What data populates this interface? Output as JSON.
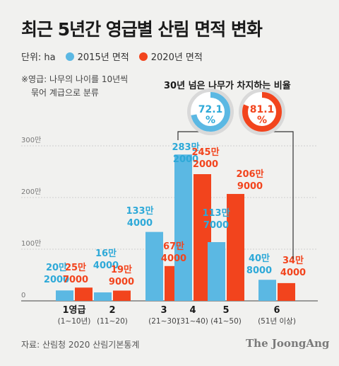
{
  "title": "최근 5년간 영급별 산림 면적 변화",
  "unit_label": "단위: ha",
  "note_lines": [
    "※영급: 나무의 나이를 10년씩",
    "묶어 계급으로 분류"
  ],
  "ratio_title": "30년 넘은 나무가 차지하는 비율",
  "source": "자료: 산림청 2020 산림기본통계",
  "brand": "The JoongAng",
  "colors": {
    "s2015": "#5bb8e3",
    "s2020": "#f2441d",
    "s2015_text": "#2ea9d8"
  },
  "chart_data": {
    "type": "bar",
    "categories": [
      "1영급",
      "2",
      "3",
      "4",
      "5",
      "6"
    ],
    "category_sublabels": [
      "(1~10년)",
      "(11~20)",
      "(21~30)",
      "(31~40)",
      "(41~50)",
      "(51년 이상)"
    ],
    "series": [
      {
        "name": "2015년 면적",
        "values": [
          202000,
          164000,
          1334000,
          2832000,
          1137000,
          408000
        ],
        "labels": [
          [
            "20만",
            "2000"
          ],
          [
            "16만",
            "4000"
          ],
          [
            "133만",
            "4000"
          ],
          [
            "283만",
            "2000"
          ],
          [
            "113만",
            "7000"
          ],
          [
            "40만",
            "8000"
          ]
        ]
      },
      {
        "name": "2020년 면적",
        "values": [
          257000,
          199000,
          674000,
          2452000,
          2069000,
          344000
        ],
        "labels": [
          [
            "25만",
            "7000"
          ],
          [
            "19만",
            "9000"
          ],
          [
            "67만",
            "4000"
          ],
          [
            "245만",
            "2000"
          ],
          [
            "206만",
            "9000"
          ],
          [
            "34만",
            "4000"
          ]
        ]
      }
    ],
    "yticks": [
      0,
      1000000,
      2000000,
      3000000
    ],
    "ytick_labels": [
      "0",
      "100만",
      "200만",
      "300만"
    ],
    "ylim": [
      0,
      3200000
    ],
    "donuts": [
      {
        "series": "2015년 면적",
        "value": 72.1,
        "label": "72.1",
        "unit": "%"
      },
      {
        "series": "2020년 면적",
        "value": 81.1,
        "label": "81.1",
        "unit": "%"
      }
    ]
  }
}
